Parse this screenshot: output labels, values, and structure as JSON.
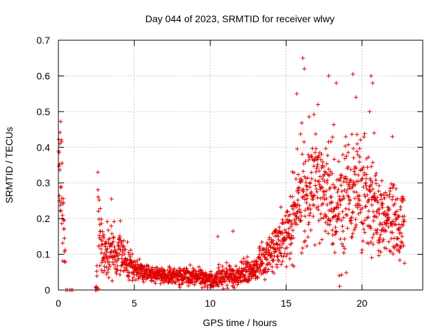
{
  "chart_data": {
    "type": "scatter",
    "title": "Day 044 of 2023, SRMTID for receiver wlwy",
    "xlabel": "GPS time / hours",
    "ylabel": "SRMTID / TECUs",
    "xlim": [
      0,
      24
    ],
    "ylim": [
      0,
      0.7
    ],
    "xticks": [
      0,
      5,
      10,
      15,
      20
    ],
    "xtick_labels": [
      "0",
      "5",
      "10",
      "15",
      "20"
    ],
    "yticks": [
      0,
      0.1,
      0.2,
      0.3,
      0.4,
      0.5,
      0.6,
      0.7
    ],
    "ytick_labels": [
      "0",
      "0.1",
      "0.2",
      "0.3",
      "0.4",
      "0.5",
      "0.6",
      "0.7"
    ],
    "grid": true,
    "marker": "+",
    "color": "#e00000",
    "profile": {
      "x": [
        0.0,
        0.15,
        0.3,
        0.5,
        1.0,
        2.5,
        2.6,
        2.8,
        3.0,
        3.5,
        4.0,
        4.5,
        5.0,
        6.0,
        7.0,
        8.0,
        9.0,
        10.0,
        11.0,
        12.0,
        13.0,
        13.5,
        14.0,
        14.5,
        15.0,
        15.5,
        16.0,
        16.5,
        17.0,
        17.5,
        18.0,
        18.5,
        19.0,
        19.5,
        20.0,
        20.5,
        21.0,
        21.5,
        22.0,
        22.5,
        22.8
      ],
      "mean": [
        0.35,
        0.32,
        0.24,
        0.0,
        0.0,
        0.0,
        0.22,
        0.14,
        0.1,
        0.1,
        0.1,
        0.08,
        0.06,
        0.045,
        0.04,
        0.04,
        0.04,
        0.03,
        0.035,
        0.04,
        0.06,
        0.08,
        0.11,
        0.13,
        0.15,
        0.2,
        0.26,
        0.3,
        0.3,
        0.28,
        0.25,
        0.24,
        0.25,
        0.26,
        0.28,
        0.26,
        0.22,
        0.2,
        0.2,
        0.2,
        0.18
      ],
      "spread": [
        0.05,
        0.08,
        0.06,
        0.0,
        0.0,
        0.0,
        0.08,
        0.05,
        0.035,
        0.035,
        0.035,
        0.025,
        0.015,
        0.012,
        0.012,
        0.012,
        0.012,
        0.012,
        0.015,
        0.015,
        0.02,
        0.025,
        0.03,
        0.03,
        0.04,
        0.07,
        0.08,
        0.08,
        0.08,
        0.08,
        0.08,
        0.08,
        0.08,
        0.08,
        0.08,
        0.07,
        0.06,
        0.05,
        0.05,
        0.05,
        0.04
      ]
    },
    "gaps": [
      [
        0.45,
        2.45
      ],
      [
        2.55,
        2.6
      ]
    ],
    "zero_points_x": [
      0.5,
      0.6,
      0.75,
      0.85,
      0.95,
      2.45,
      2.52
    ],
    "peak_points": [
      {
        "x": 15.7,
        "y": 0.55
      },
      {
        "x": 16.1,
        "y": 0.65
      },
      {
        "x": 16.2,
        "y": 0.62
      },
      {
        "x": 17.8,
        "y": 0.6
      },
      {
        "x": 18.3,
        "y": 0.58
      },
      {
        "x": 19.4,
        "y": 0.605
      },
      {
        "x": 20.6,
        "y": 0.6
      },
      {
        "x": 20.7,
        "y": 0.58
      },
      {
        "x": 17.1,
        "y": 0.52
      },
      {
        "x": 19.6,
        "y": 0.54
      },
      {
        "x": 20.5,
        "y": 0.5
      },
      {
        "x": 11.5,
        "y": 0.165
      },
      {
        "x": 10.5,
        "y": 0.15
      },
      {
        "x": 3.5,
        "y": 0.255
      },
      {
        "x": 2.6,
        "y": 0.33
      },
      {
        "x": 0.1,
        "y": 0.41
      },
      {
        "x": 0.2,
        "y": 0.42
      },
      {
        "x": 22.0,
        "y": 0.43
      },
      {
        "x": 21.1,
        "y": 0.11
      },
      {
        "x": 18.5,
        "y": 0.04
      },
      {
        "x": 18.1,
        "y": 0.13
      },
      {
        "x": 15.4,
        "y": 0.07
      },
      {
        "x": 22.8,
        "y": 0.075
      },
      {
        "x": 20.8,
        "y": 0.44
      }
    ]
  }
}
